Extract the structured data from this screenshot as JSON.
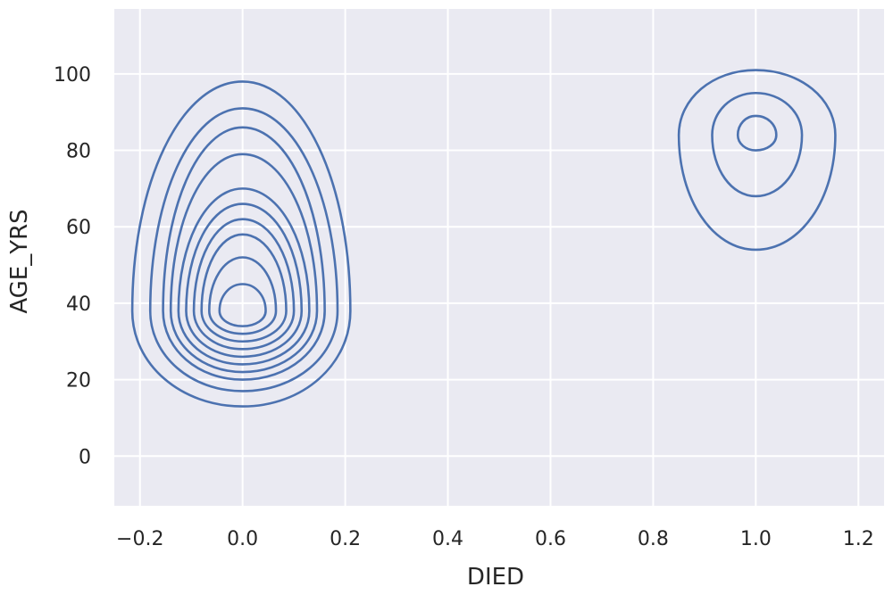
{
  "chart_data": {
    "type": "kde-contour",
    "xlabel": "DIED",
    "ylabel": "AGE_YRS",
    "xlim": [
      -0.25,
      1.25
    ],
    "ylim": [
      -13,
      117
    ],
    "x_ticks": [
      -0.2,
      0.0,
      0.2,
      0.4,
      0.6,
      0.8,
      1.0,
      1.2
    ],
    "x_tick_labels": [
      "−0.2",
      "0.0",
      "0.2",
      "0.4",
      "0.6",
      "0.8",
      "1.0",
      "1.2"
    ],
    "y_ticks": [
      0,
      20,
      40,
      60,
      80,
      100
    ],
    "y_tick_labels": [
      "0",
      "20",
      "40",
      "60",
      "80",
      "100"
    ],
    "grid": true,
    "background": "#eaeaf2",
    "series_color": "#4c72b0",
    "clusters": [
      {
        "center": [
          0.0,
          38
        ],
        "levels": [
          {
            "x_range": [
              -0.215,
              0.21
            ],
            "y_range": [
              13,
              98
            ]
          },
          {
            "x_range": [
              -0.18,
              0.185
            ],
            "y_range": [
              17,
              91
            ]
          },
          {
            "x_range": [
              -0.155,
              0.16
            ],
            "y_range": [
              20,
              86
            ]
          },
          {
            "x_range": [
              -0.14,
              0.145
            ],
            "y_range": [
              22,
              79
            ]
          },
          {
            "x_range": [
              -0.125,
              0.13
            ],
            "y_range": [
              24,
              70
            ]
          },
          {
            "x_range": [
              -0.11,
              0.115
            ],
            "y_range": [
              26,
              66
            ]
          },
          {
            "x_range": [
              -0.095,
              0.1
            ],
            "y_range": [
              28,
              62
            ]
          },
          {
            "x_range": [
              -0.08,
              0.085
            ],
            "y_range": [
              30,
              58
            ]
          },
          {
            "x_range": [
              -0.065,
              0.065
            ],
            "y_range": [
              32,
              52
            ]
          },
          {
            "x_range": [
              -0.045,
              0.045
            ],
            "y_range": [
              34,
              45
            ]
          }
        ]
      },
      {
        "center": [
          1.0,
          84
        ],
        "levels": [
          {
            "x_range": [
              0.85,
              1.155
            ],
            "y_range": [
              54,
              101
            ]
          },
          {
            "x_range": [
              0.915,
              1.09
            ],
            "y_range": [
              68,
              95
            ]
          },
          {
            "x_range": [
              0.965,
              1.04
            ],
            "y_range": [
              80,
              89
            ]
          }
        ]
      }
    ]
  }
}
